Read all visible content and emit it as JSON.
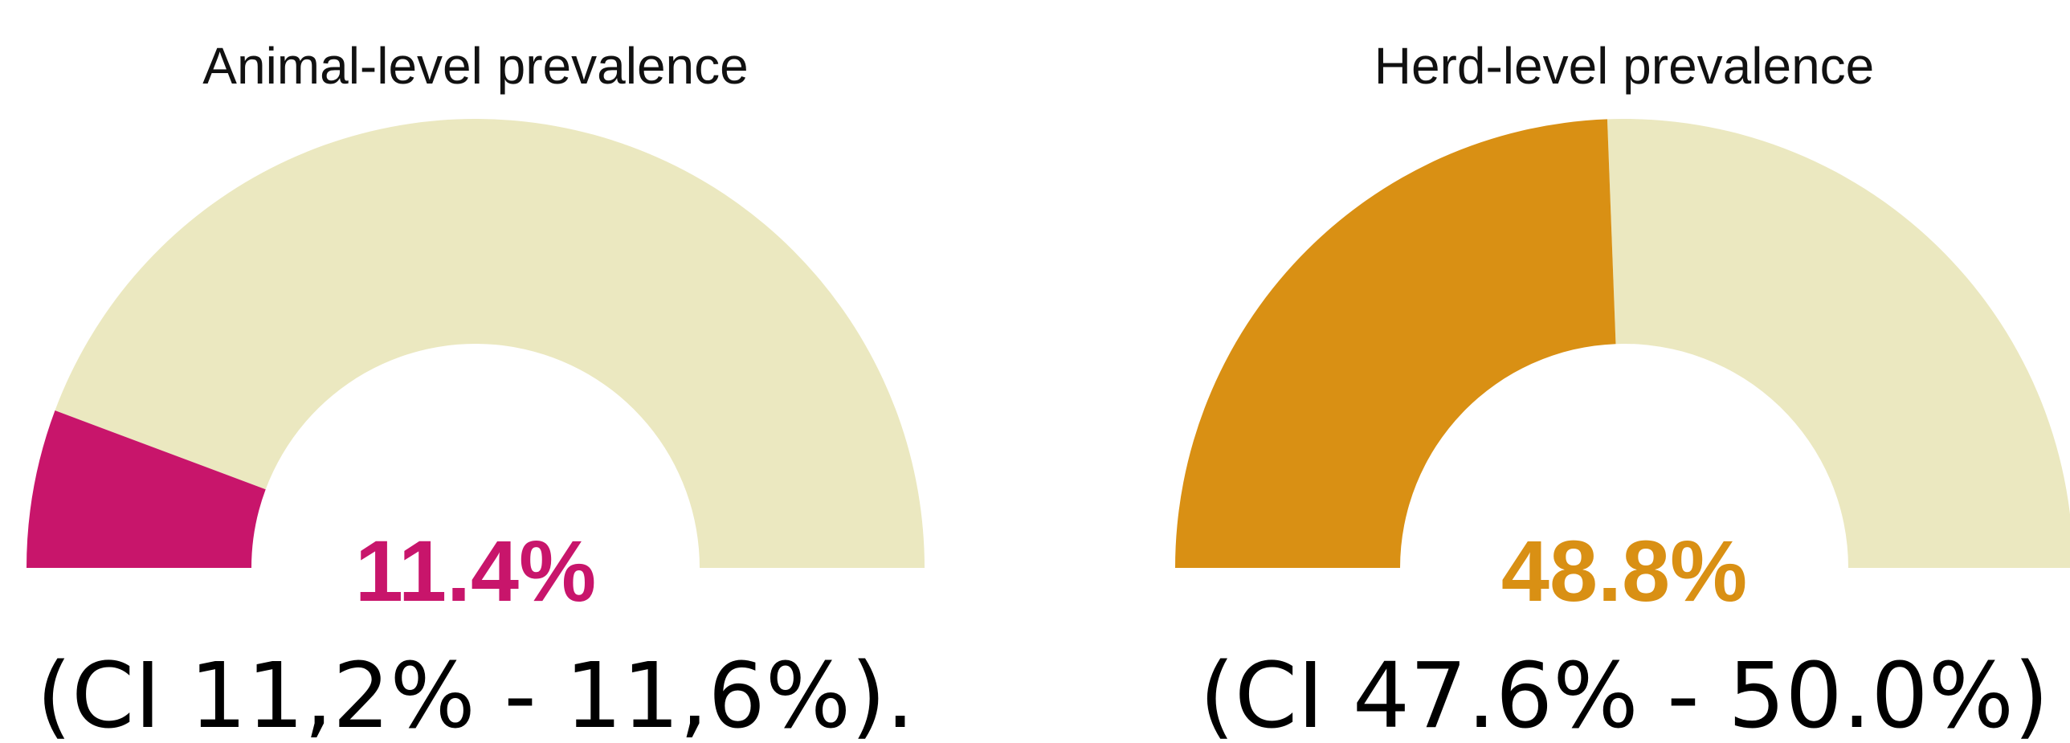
{
  "chart_data": [
    {
      "type": "gauge",
      "title": "Animal-level prevalence",
      "values": [
        11.4
      ],
      "value_labels": [
        "11.4%"
      ],
      "annotation": "(CI 11,2% - 11,6%).",
      "color": "#c8156b",
      "track_color": "#ebe8c0",
      "ylim": [
        0,
        100
      ]
    },
    {
      "type": "gauge",
      "title": "Herd-level prevalence",
      "values": [
        48.8
      ],
      "value_labels": [
        "48.8%"
      ],
      "annotation": "(CI 47.6% - 50.0%)",
      "color": "#d99014",
      "track_color": "#ebe8c0",
      "ylim": [
        0,
        100
      ]
    }
  ]
}
